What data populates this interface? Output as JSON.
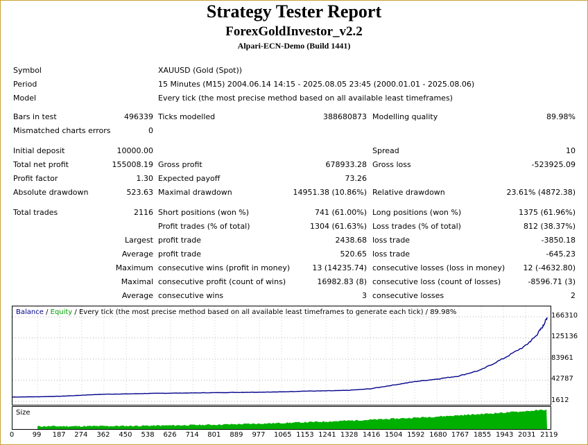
{
  "header": {
    "title": "Strategy Tester Report",
    "ea_name": "ForexGoldInvestor_v2.2",
    "server": "Alpari-ECN-Demo (Build 1441)"
  },
  "info": {
    "symbol_label": "Symbol",
    "symbol_value": "XAUUSD (Gold (Spot))",
    "period_label": "Period",
    "period_value": "15 Minutes (M15) 2004.06.14 14:15 - 2025.08.05 23:45 (2000.01.01 - 2025.08.06)",
    "model_label": "Model",
    "model_value": "Every tick (the most precise method based on all available least timeframes)"
  },
  "stats": {
    "bars_label": "Bars in test",
    "bars_value": "496339",
    "ticks_label": "Ticks modelled",
    "ticks_value": "388680873",
    "quality_label": "Modelling quality",
    "quality_value": "89.98%",
    "mismatch_label": "Mismatched charts errors",
    "mismatch_value": "0",
    "deposit_label": "Initial deposit",
    "deposit_value": "10000.00",
    "spread_label": "Spread",
    "spread_value": "10",
    "net_label": "Total net profit",
    "net_value": "155008.19",
    "gprofit_label": "Gross profit",
    "gprofit_value": "678933.28",
    "gloss_label": "Gross loss",
    "gloss_value": "-523925.09",
    "pf_label": "Profit factor",
    "pf_value": "1.30",
    "payoff_label": "Expected payoff",
    "payoff_value": "73.26",
    "absdd_label": "Absolute drawdown",
    "absdd_value": "523.63",
    "maxdd_label": "Maximal drawdown",
    "maxdd_value": "14951.38 (10.86%)",
    "reldd_label": "Relative drawdown",
    "reldd_value": "23.61% (4872.38)",
    "trades_label": "Total trades",
    "trades_value": "2116",
    "short_label": "Short positions (won %)",
    "short_value": "741 (61.00%)",
    "long_label": "Long positions (won %)",
    "long_value": "1375 (61.96%)",
    "ptrades_label": "Profit trades (% of total)",
    "ptrades_value": "1304 (61.63%)",
    "ltrades_label": "Loss trades (% of total)",
    "ltrades_value": "812 (38.37%)",
    "largest_label": "Largest",
    "largest_pt_label": "profit trade",
    "largest_pt_value": "2438.68",
    "largest_lt_label": "loss trade",
    "largest_lt_value": "-3850.18",
    "average_label": "Average",
    "average_pt_label": "profit trade",
    "average_pt_value": "520.65",
    "average_lt_label": "loss trade",
    "average_lt_value": "-645.23",
    "maximum_label": "Maximum",
    "max_cw_label": "consecutive wins (profit in money)",
    "max_cw_value": "13 (14235.74)",
    "max_cl_label": "consecutive losses (loss in money)",
    "max_cl_value": "12 (-4632.80)",
    "maximal_label": "Maximal",
    "mx_cp_label": "consecutive profit (count of wins)",
    "mx_cp_value": "16982.83 (8)",
    "mx_cl_label": "consecutive loss (count of losses)",
    "mx_cl_value": "-8596.71 (3)",
    "avg2_label": "Average",
    "avg_cw_label": "consecutive wins",
    "avg_cw_value": "3",
    "avg_cl_label": "consecutive losses",
    "avg_cl_value": "2"
  },
  "chart_legend": {
    "balance": "Balance",
    "sep1": " / ",
    "equity": "Equity",
    "rest": " / Every tick (the most precise method based on all available least timeframes to generate each tick) / 89.98%"
  },
  "size_label": "Size",
  "colors": {
    "balance": "#00008b",
    "equity": "#00a000",
    "size": "#00b000",
    "frame": "#c8a032"
  },
  "chart_data": {
    "type": "line",
    "title": "",
    "xlabel": "",
    "ylabel": "",
    "y_ticks": [
      "166310",
      "125136",
      "83961",
      "42787",
      "1612"
    ],
    "y_tick_values": [
      166310,
      125136,
      83961,
      42787,
      1612
    ],
    "x_ticks": [
      "0",
      "99",
      "187",
      "274",
      "362",
      "450",
      "538",
      "626",
      "714",
      "801",
      "889",
      "977",
      "1065",
      "1153",
      "1241",
      "1328",
      "1416",
      "1504",
      "1592",
      "1680",
      "1767",
      "1855",
      "1943",
      "2031",
      "2119"
    ],
    "ylim": [
      1612,
      166310
    ],
    "xlim": [
      0,
      2116
    ],
    "series": [
      {
        "name": "Balance",
        "x": [
          0,
          99,
          187,
          274,
          362,
          450,
          538,
          626,
          714,
          801,
          889,
          977,
          1065,
          1153,
          1241,
          1328,
          1416,
          1504,
          1592,
          1680,
          1767,
          1855,
          1943,
          2031,
          2070,
          2100,
          2116
        ],
        "values": [
          10000,
          10500,
          11500,
          13500,
          15500,
          16000,
          17000,
          17500,
          18000,
          18500,
          19000,
          19500,
          20000,
          21500,
          22000,
          23000,
          26000,
          33000,
          40000,
          45000,
          51000,
          63000,
          85000,
          110000,
          128000,
          148000,
          165000
        ]
      }
    ]
  }
}
